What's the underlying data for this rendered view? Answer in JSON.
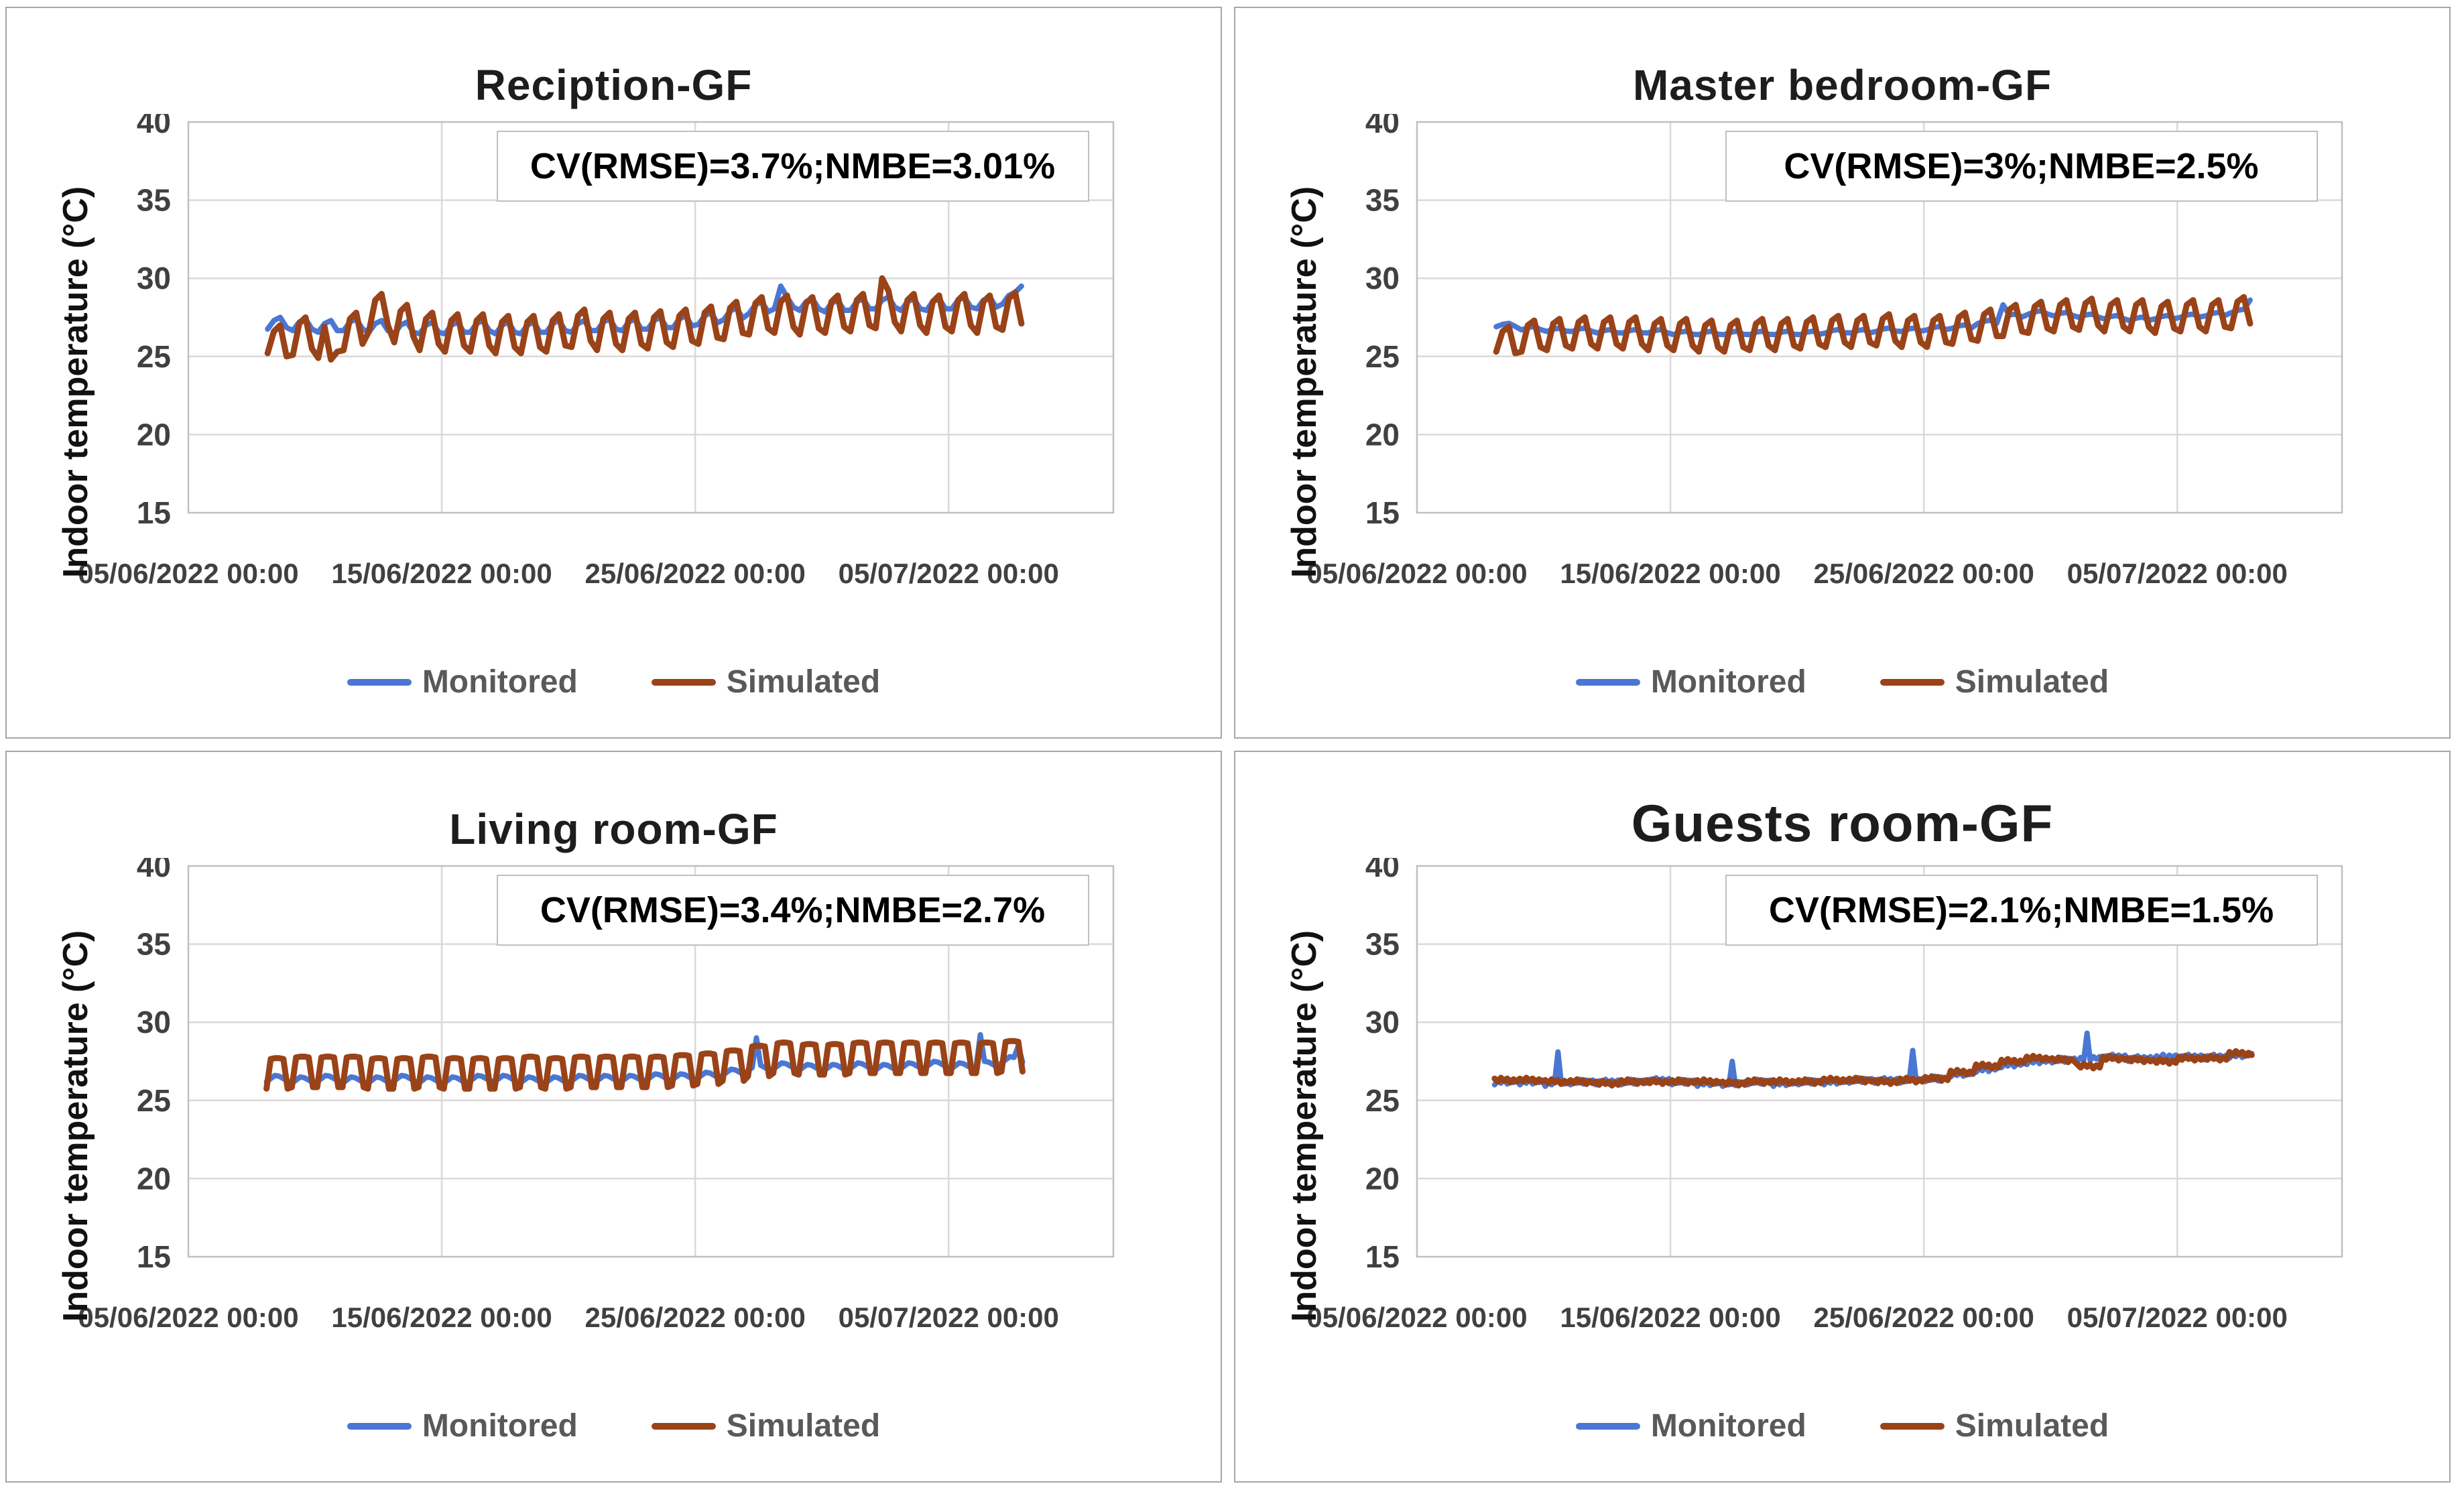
{
  "colors": {
    "monitored": "#4a77d4",
    "simulated": "#9a4318",
    "grid": "#d9d9d9",
    "plot_border": "#bfbfbf",
    "panel_border": "#a6a6a6",
    "tick_text": "#404040",
    "legend_text": "#595959",
    "title_text": "#1d1d1d"
  },
  "chart_data": [
    {
      "type": "line",
      "title": "Reciption-GF",
      "annotation": "CV(RMSE)=3.7%;NMBE=3.01%",
      "axes": {
        "ylabel": "Indoor temperature (°C)",
        "ylim": [
          15,
          40
        ],
        "yticks": [
          15,
          20,
          25,
          30,
          35,
          40
        ],
        "x_max_day": 36.5,
        "grid": true,
        "xticks": [
          {
            "day": 0,
            "label": "05/06/2022 00:00"
          },
          {
            "day": 10,
            "label": "15/06/2022 00:00"
          },
          {
            "day": 20,
            "label": "25/06/2022 00:00"
          },
          {
            "day": 30,
            "label": "05/07/2022 00:00"
          }
        ]
      },
      "series": [
        {
          "name": "Monitored",
          "color_key": "monitored",
          "start_day": 3,
          "daily_mean": [
            27.1,
            27.0,
            26.9,
            27.0,
            26.9,
            26.8,
            26.8,
            26.8,
            26.9,
            26.8,
            26.8,
            26.9,
            26.9,
            27.0,
            27.0,
            27.1,
            27.2,
            27.4,
            27.7,
            28.1,
            28.4,
            28.3,
            28.2,
            28.3,
            28.4,
            28.3,
            28.3,
            28.4,
            28.4,
            28.7
          ],
          "intraday_offsets": [
            -0.35,
            0.2,
            0.4,
            -0.25
          ],
          "spikes": [
            [
              23.3,
              29.5
            ],
            [
              32.8,
              29.5
            ]
          ]
        },
        {
          "name": "Simulated",
          "color_key": "simulated",
          "start_day": 3,
          "daily_mean": [
            25.8,
            26.3,
            26.1,
            26.6,
            27.8,
            27.1,
            26.6,
            26.5,
            26.5,
            26.4,
            26.4,
            26.5,
            26.8,
            26.6,
            26.6,
            26.7,
            26.8,
            27.0,
            27.3,
            27.6,
            27.7,
            27.6,
            27.7,
            27.8,
            28.0,
            27.8,
            27.7,
            27.8,
            27.7,
            27.9
          ],
          "intraday_offsets": [
            -1.2,
            0.8,
            1.2,
            -0.8
          ],
          "spikes": [
            [
              3.1,
              25.2
            ],
            [
              5.6,
              24.8
            ],
            [
              27.4,
              30.0
            ]
          ]
        }
      ]
    },
    {
      "type": "line",
      "title": "Master bedroom-GF",
      "annotation": "CV(RMSE)=3%;NMBE=2.5%",
      "axes": {
        "ylabel": "Indoor temperature (°C)",
        "ylim": [
          15,
          40
        ],
        "yticks": [
          15,
          20,
          25,
          30,
          35,
          40
        ],
        "x_max_day": 36.5,
        "grid": true,
        "xticks": [
          {
            "day": 0,
            "label": "05/06/2022 00:00"
          },
          {
            "day": 10,
            "label": "15/06/2022 00:00"
          },
          {
            "day": 20,
            "label": "25/06/2022 00:00"
          },
          {
            "day": 30,
            "label": "05/07/2022 00:00"
          }
        ]
      },
      "series": [
        {
          "name": "Monitored",
          "color_key": "monitored",
          "start_day": 3,
          "daily_mean": [
            27.0,
            26.8,
            26.7,
            26.7,
            26.6,
            26.6,
            26.6,
            26.5,
            26.5,
            26.5,
            26.5,
            26.5,
            26.5,
            26.6,
            26.6,
            26.7,
            26.7,
            26.8,
            26.9,
            27.2,
            27.6,
            27.8,
            27.7,
            27.6,
            27.5,
            27.4,
            27.5,
            27.6,
            27.7,
            27.9
          ],
          "intraday_offsets": [
            -0.1,
            0.05,
            0.12,
            -0.08
          ],
          "spikes": [
            [
              23.1,
              28.3
            ],
            [
              32.8,
              28.6
            ]
          ]
        },
        {
          "name": "Simulated",
          "color_key": "simulated",
          "start_day": 3,
          "daily_mean": [
            25.9,
            26.3,
            26.4,
            26.5,
            26.5,
            26.5,
            26.4,
            26.4,
            26.3,
            26.3,
            26.4,
            26.4,
            26.5,
            26.6,
            26.6,
            26.7,
            26.6,
            26.6,
            26.8,
            27.0,
            27.3,
            27.5,
            27.6,
            27.7,
            27.6,
            27.6,
            27.5,
            27.6,
            27.6,
            27.8
          ],
          "intraday_offsets": [
            -1.0,
            0.7,
            1.0,
            -0.7
          ],
          "spikes": [
            [
              3.1,
              25.3
            ]
          ]
        }
      ]
    },
    {
      "type": "line",
      "title": "Living room-GF",
      "annotation": "CV(RMSE)=3.4%;NMBE=2.7%",
      "axes": {
        "ylabel": "Indoor temperature (°C)",
        "ylim": [
          15,
          40
        ],
        "yticks": [
          15,
          20,
          25,
          30,
          35,
          40
        ],
        "x_max_day": 36.5,
        "grid": true,
        "xticks": [
          {
            "day": 0,
            "label": "05/06/2022 00:00"
          },
          {
            "day": 10,
            "label": "15/06/2022 00:00"
          },
          {
            "day": 20,
            "label": "25/06/2022 00:00"
          },
          {
            "day": 30,
            "label": "05/07/2022 00:00"
          }
        ]
      },
      "series": [
        {
          "name": "Monitored",
          "color_key": "monitored",
          "start_day": 3,
          "daily_mean": [
            26.4,
            26.3,
            26.4,
            26.3,
            26.3,
            26.4,
            26.3,
            26.3,
            26.4,
            26.4,
            26.3,
            26.3,
            26.4,
            26.4,
            26.4,
            26.5,
            26.5,
            26.6,
            26.8,
            27.1,
            27.2,
            27.1,
            27.1,
            27.2,
            27.1,
            27.2,
            27.3,
            27.2,
            27.3,
            27.6
          ],
          "intraday_offsets": [
            -0.2,
            0.0,
            0.2,
            0.15,
            0.0,
            -0.15
          ],
          "spikes": [
            [
              22.4,
              29.0
            ],
            [
              31.3,
              29.2
            ],
            [
              32.8,
              28.5
            ]
          ]
        },
        {
          "name": "Simulated",
          "color_key": "simulated",
          "start_day": 3,
          "daily_mean": [
            26.7,
            26.8,
            26.8,
            26.8,
            26.7,
            26.7,
            26.8,
            26.7,
            26.7,
            26.7,
            26.8,
            26.7,
            26.8,
            26.8,
            26.8,
            26.8,
            26.9,
            27.0,
            27.2,
            27.5,
            27.7,
            27.6,
            27.6,
            27.7,
            27.7,
            27.7,
            27.7,
            27.7,
            27.7,
            27.8
          ],
          "intraday_offsets": [
            -0.95,
            0.95,
            1.0,
            1.0,
            0.95,
            -0.95
          ],
          "spikes": []
        }
      ]
    },
    {
      "type": "line",
      "title": "Guests room-GF",
      "annotation": "CV(RMSE)=2.1%;NMBE=1.5%",
      "axes": {
        "ylabel": "Indoor temperature (°C)",
        "ylim": [
          15,
          40
        ],
        "yticks": [
          15,
          20,
          25,
          30,
          35,
          40
        ],
        "x_max_day": 36.5,
        "grid": true,
        "xticks": [
          {
            "day": 0,
            "label": "05/06/2022 00:00"
          },
          {
            "day": 10,
            "label": "15/06/2022 00:00"
          },
          {
            "day": 20,
            "label": "25/06/2022 00:00"
          },
          {
            "day": 30,
            "label": "05/07/2022 00:00"
          }
        ]
      },
      "series": [
        {
          "name": "Monitored",
          "color_key": "monitored",
          "start_day": 3,
          "daily_mean": [
            26.2,
            26.2,
            26.1,
            26.2,
            26.2,
            26.2,
            26.3,
            26.2,
            26.1,
            26.1,
            26.2,
            26.1,
            26.2,
            26.2,
            26.3,
            26.3,
            26.3,
            26.4,
            26.7,
            27.0,
            27.3,
            27.5,
            27.6,
            27.7,
            27.8,
            27.7,
            27.8,
            27.8,
            27.8,
            27.9
          ],
          "intraday_offsets": [
            -0.2,
            0.05,
            -0.1,
            0.15,
            -0.15,
            0.1,
            -0.05,
            0.1
          ],
          "spikes": [
            [
              5.6,
              28.1
            ],
            [
              12.4,
              27.5
            ],
            [
              19.6,
              28.2
            ],
            [
              26.4,
              29.3
            ]
          ]
        },
        {
          "name": "Simulated",
          "color_key": "simulated",
          "start_day": 3,
          "daily_mean": [
            26.3,
            26.3,
            26.2,
            26.2,
            26.1,
            26.2,
            26.2,
            26.2,
            26.2,
            26.1,
            26.2,
            26.2,
            26.2,
            26.3,
            26.3,
            26.2,
            26.3,
            26.4,
            26.8,
            27.2,
            27.5,
            27.7,
            27.6,
            27.2,
            27.7,
            27.6,
            27.5,
            27.7,
            27.7,
            28.0
          ],
          "intraday_offsets": [
            0.1,
            -0.1,
            0.15,
            -0.05,
            0.1,
            -0.15,
            0.05,
            -0.1
          ],
          "spikes": []
        }
      ]
    }
  ]
}
